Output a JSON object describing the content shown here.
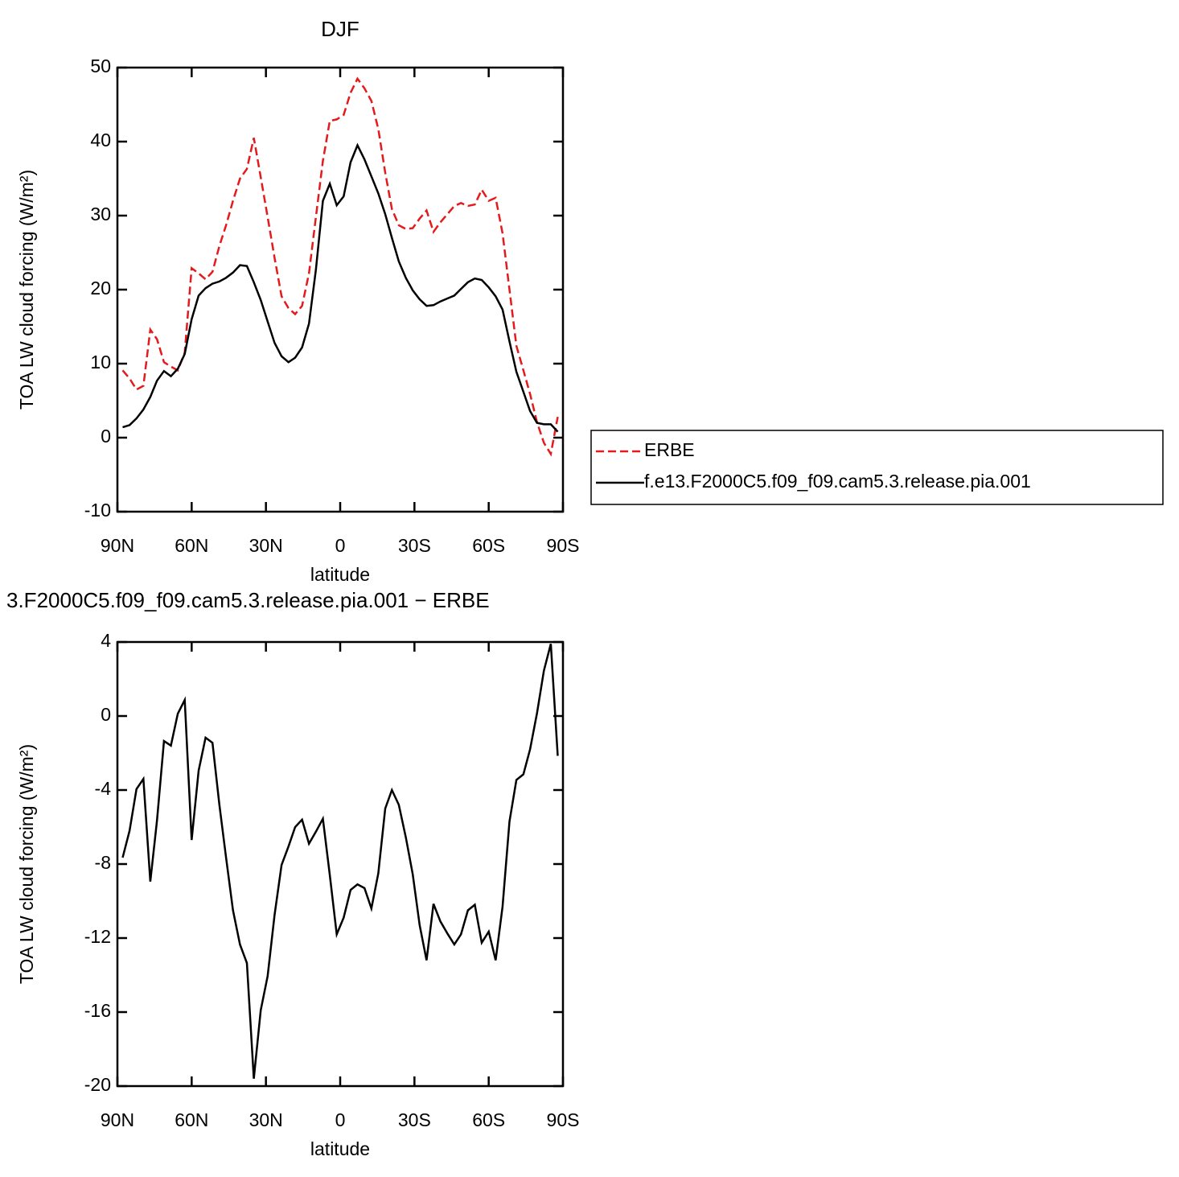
{
  "chart_data": [
    {
      "type": "line",
      "title": "DJF",
      "xlabel": "latitude",
      "ylabel": "TOA LW cloud forcing (W/m²)",
      "x": [
        87.9,
        85.1,
        82.3,
        79.5,
        76.7,
        74.0,
        71.2,
        68.4,
        65.6,
        62.8,
        60.0,
        57.2,
        54.4,
        51.6,
        48.8,
        46.1,
        43.3,
        40.5,
        37.7,
        34.9,
        32.1,
        29.3,
        26.5,
        23.7,
        20.9,
        18.2,
        15.4,
        12.6,
        9.8,
        7.0,
        4.2,
        1.4,
        -1.4,
        -4.2,
        -7.0,
        -9.8,
        -12.6,
        -15.4,
        -18.2,
        -20.9,
        -23.7,
        -26.5,
        -29.3,
        -32.1,
        -34.9,
        -37.7,
        -40.5,
        -43.3,
        -46.1,
        -48.8,
        -51.6,
        -54.4,
        -57.2,
        -60.0,
        -62.8,
        -65.6,
        -68.4,
        -71.2,
        -74.0,
        -76.7,
        -79.5,
        -82.3,
        -85.1,
        -87.9
      ],
      "series": [
        {
          "name": "ERBE",
          "color": "#e41a1c",
          "dash": true,
          "values": [
            9.1,
            8.0,
            6.5,
            7.0,
            14.6,
            13.3,
            10.2,
            9.6,
            9.1,
            11.5,
            22.9,
            22.2,
            21.4,
            22.4,
            25.9,
            28.7,
            32.0,
            35.0,
            36.3,
            40.5,
            35.2,
            29.8,
            24.3,
            19.1,
            17.5,
            16.7,
            17.8,
            22.2,
            29.8,
            37.4,
            42.8,
            43.0,
            43.6,
            46.6,
            48.5,
            47.2,
            45.5,
            41.7,
            35.8,
            30.9,
            28.7,
            28.2,
            28.3,
            29.6,
            30.7,
            27.8,
            29.1,
            30.2,
            31.3,
            31.7,
            31.3,
            31.5,
            33.5,
            32.0,
            32.4,
            27.6,
            20.0,
            12.4,
            9.1,
            5.9,
            2.1,
            -0.7,
            -2.2,
            2.8
          ]
        },
        {
          "name": "f.e13.F2000C5.f09_f09.cam5.3.release.pia.001",
          "color": "#000000",
          "dash": false,
          "values": [
            1.4,
            1.7,
            2.6,
            3.8,
            5.5,
            7.7,
            9.0,
            8.3,
            9.3,
            11.3,
            16.0,
            19.2,
            20.2,
            20.8,
            21.1,
            21.6,
            22.3,
            23.3,
            23.2,
            21.0,
            18.6,
            15.7,
            12.8,
            11.0,
            10.2,
            10.8,
            12.2,
            15.4,
            22.7,
            32.0,
            34.3,
            31.4,
            32.6,
            37.2,
            39.5,
            37.6,
            35.3,
            33.0,
            30.2,
            27.0,
            23.8,
            21.6,
            19.9,
            18.7,
            17.8,
            17.9,
            18.4,
            18.8,
            19.2,
            20.1,
            21.0,
            21.5,
            21.3,
            20.3,
            19.1,
            17.3,
            13.0,
            8.9,
            6.2,
            3.6,
            2.0,
            1.8,
            1.8,
            0.8
          ]
        }
      ],
      "xlim": [
        90,
        -90
      ],
      "xticks": [
        {
          "value": 90,
          "label": "90N"
        },
        {
          "value": 60,
          "label": "60N"
        },
        {
          "value": 30,
          "label": "30N"
        },
        0,
        {
          "value": -30,
          "label": "30S"
        },
        {
          "value": -60,
          "label": "60S"
        },
        {
          "value": -90,
          "label": "90S"
        }
      ],
      "ylim": [
        -10,
        50
      ],
      "yticks": [
        -10,
        0,
        10,
        20,
        30,
        40,
        50
      ],
      "legend": "right"
    },
    {
      "type": "line",
      "title": "3.F2000C5.f09_f09.cam5.3.release.pia.001 − ERBE",
      "xlabel": "latitude",
      "ylabel": "TOA LW cloud forcing (W/m²)",
      "x": [
        87.9,
        85.1,
        82.3,
        79.5,
        76.7,
        74.0,
        71.2,
        68.4,
        65.6,
        62.8,
        60.0,
        57.2,
        54.4,
        51.6,
        48.8,
        46.1,
        43.3,
        40.5,
        37.7,
        34.9,
        32.1,
        29.3,
        26.5,
        23.7,
        20.9,
        18.2,
        15.4,
        12.6,
        9.8,
        7.0,
        4.2,
        1.4,
        -1.4,
        -4.2,
        -7.0,
        -9.8,
        -12.6,
        -15.4,
        -18.2,
        -20.9,
        -23.7,
        -26.5,
        -29.3,
        -32.1,
        -34.9,
        -37.7,
        -40.5,
        -43.3,
        -46.1,
        -48.8,
        -51.6,
        -54.4,
        -57.2,
        -60.0,
        -62.8,
        -65.6,
        -68.4,
        -71.2,
        -74.0,
        -76.7,
        -79.5,
        -82.3,
        -85.1,
        -87.9
      ],
      "values": [
        -7.65,
        -6.2,
        -3.95,
        -3.4,
        -8.95,
        -5.65,
        -1.35,
        -1.6,
        0.13,
        0.87,
        -6.7,
        -2.95,
        -1.17,
        -1.45,
        -4.8,
        -7.65,
        -10.5,
        -12.35,
        -13.35,
        -19.6,
        -15.9,
        -14.05,
        -10.75,
        -8.05,
        -7.05,
        -6.0,
        -5.6,
        -6.9,
        -6.25,
        -5.55,
        -8.6,
        -11.8,
        -10.9,
        -9.4,
        -9.1,
        -9.3,
        -10.4,
        -8.5,
        -5.0,
        -4.0,
        -4.8,
        -6.55,
        -8.55,
        -11.3,
        -13.2,
        -10.15,
        -11.1,
        -11.75,
        -12.35,
        -11.8,
        -10.5,
        -10.2,
        -12.25,
        -11.65,
        -13.2,
        -10.3,
        -5.7,
        -3.45,
        -3.15,
        -1.8,
        0.15,
        2.45,
        3.9,
        -2.15
      ],
      "color": "#000000",
      "xlim": [
        90,
        -90
      ],
      "xticks": [
        {
          "value": 90,
          "label": "90N"
        },
        {
          "value": 60,
          "label": "60N"
        },
        {
          "value": 30,
          "label": "30N"
        },
        0,
        {
          "value": -30,
          "label": "30S"
        },
        {
          "value": -60,
          "label": "60S"
        },
        {
          "value": -90,
          "label": "90S"
        }
      ],
      "ylim": [
        -20,
        4
      ],
      "yticks": [
        -20,
        -16,
        -12,
        -8,
        -4,
        0,
        4
      ]
    }
  ]
}
